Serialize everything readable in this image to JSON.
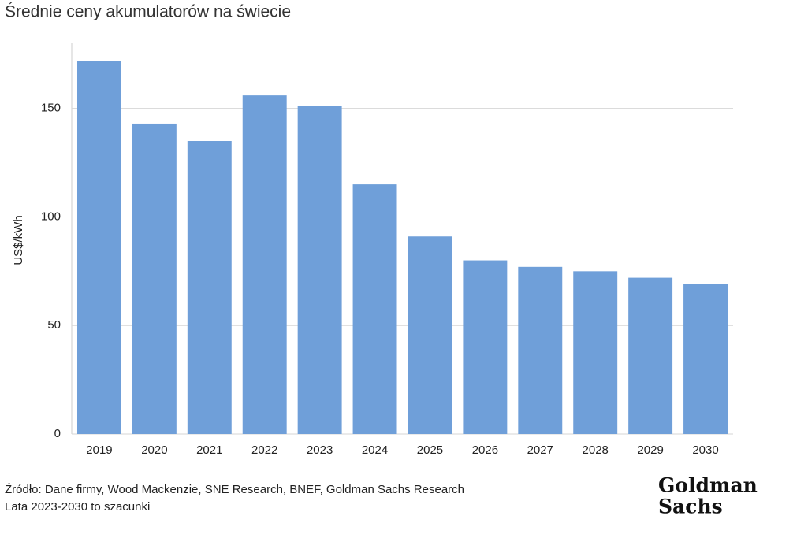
{
  "chart_data": {
    "type": "bar",
    "title": "Średnie ceny akumulatorów na świecie",
    "y_label": "US$/kWh",
    "categories": [
      "2019",
      "2020",
      "2021",
      "2022",
      "2023",
      "2024",
      "2025",
      "2026",
      "2027",
      "2028",
      "2029",
      "2030"
    ],
    "values": [
      172,
      143,
      135,
      156,
      151,
      115,
      91,
      80,
      77,
      75,
      72,
      69
    ],
    "color": "#6f9fd9",
    "ylim": [
      0,
      180
    ],
    "yticks": [
      0,
      50,
      100,
      150
    ],
    "grid": true,
    "source": "Źródło: Dane firmy, Wood Mackenzie, SNE Research, BNEF, Goldman Sachs Research",
    "note": "Lata 2023-2030 to szacunki",
    "logo": [
      "Goldman",
      "Sachs"
    ]
  }
}
